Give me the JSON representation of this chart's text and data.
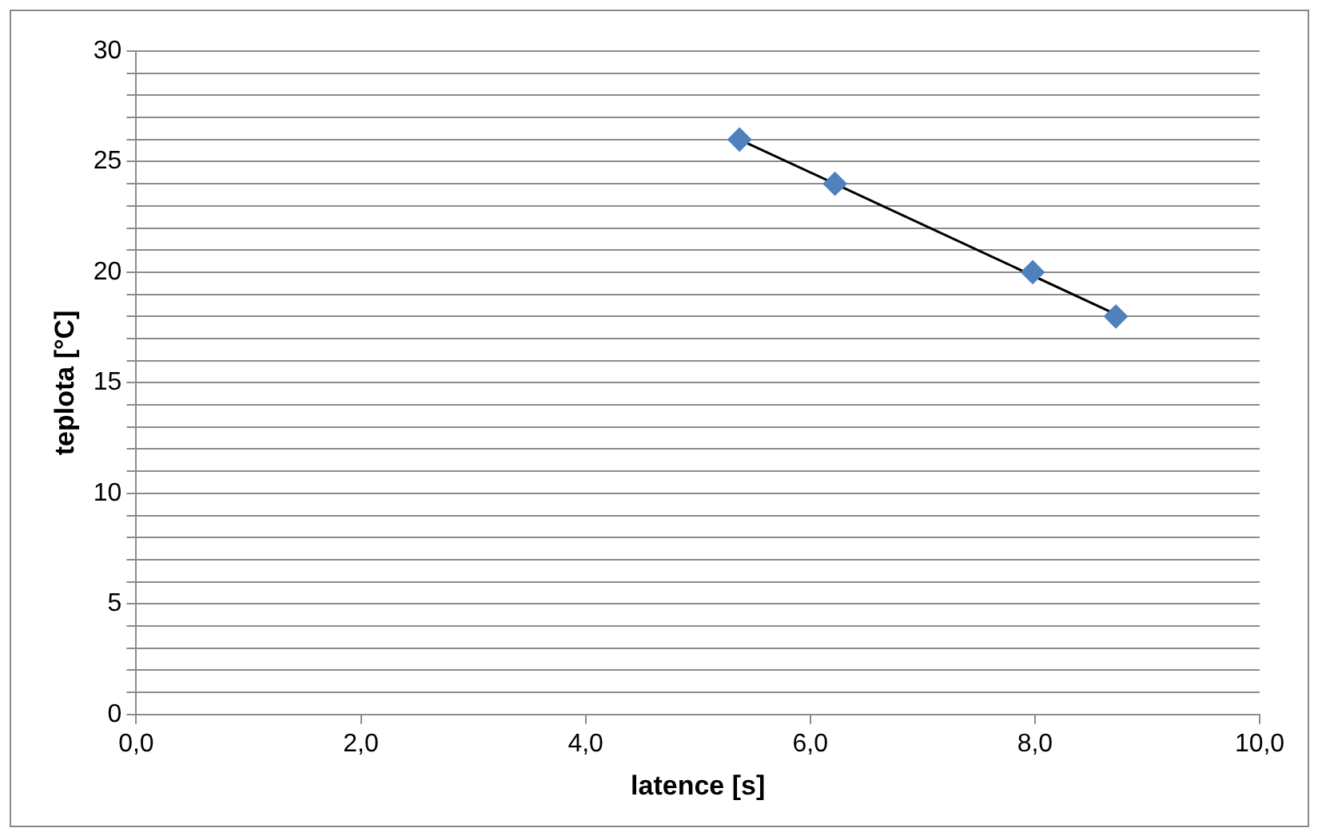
{
  "chart_data": {
    "type": "scatter",
    "xlabel": "latence [s]",
    "ylabel": "teplota [°C]",
    "xlim": [
      0,
      10
    ],
    "xticks": [
      {
        "value": 0,
        "label": "0,0"
      },
      {
        "value": 2,
        "label": "2,0"
      },
      {
        "value": 4,
        "label": "4,0"
      },
      {
        "value": 6,
        "label": "6,0"
      },
      {
        "value": 8,
        "label": "8,0"
      },
      {
        "value": 10,
        "label": "10,0"
      }
    ],
    "ylim": [
      0,
      30
    ],
    "yticks": [
      0,
      {
        "value": 1,
        "label": null
      },
      {
        "value": 2,
        "label": null
      },
      {
        "value": 3,
        "label": null
      },
      {
        "value": 4,
        "label": null
      },
      5,
      {
        "value": 6,
        "label": null
      },
      {
        "value": 7,
        "label": null
      },
      {
        "value": 8,
        "label": null
      },
      {
        "value": 9,
        "label": null
      },
      10,
      {
        "value": 11,
        "label": null
      },
      {
        "value": 12,
        "label": null
      },
      {
        "value": 13,
        "label": null
      },
      {
        "value": 14,
        "label": null
      },
      15,
      {
        "value": 16,
        "label": null
      },
      {
        "value": 17,
        "label": null
      },
      {
        "value": 18,
        "label": null
      },
      {
        "value": 19,
        "label": null
      },
      20,
      {
        "value": 21,
        "label": null
      },
      {
        "value": 22,
        "label": null
      },
      {
        "value": 23,
        "label": null
      },
      {
        "value": 24,
        "label": null
      },
      25,
      {
        "value": 26,
        "label": null
      },
      {
        "value": 27,
        "label": null
      },
      {
        "value": 28,
        "label": null
      },
      {
        "value": 29,
        "label": null
      },
      30
    ],
    "grid": "y",
    "legend": false,
    "series": [
      {
        "type": "scatter",
        "marker": "diamond",
        "color": "#4f81bd",
        "x": [
          5.37,
          6.22,
          7.98,
          8.72
        ],
        "values": [
          26,
          24,
          20,
          18
        ]
      },
      {
        "type": "line",
        "marker": "none",
        "color": "#000000",
        "x": [
          5.37,
          8.72
        ],
        "values": [
          26.0,
          18.1
        ]
      }
    ]
  }
}
